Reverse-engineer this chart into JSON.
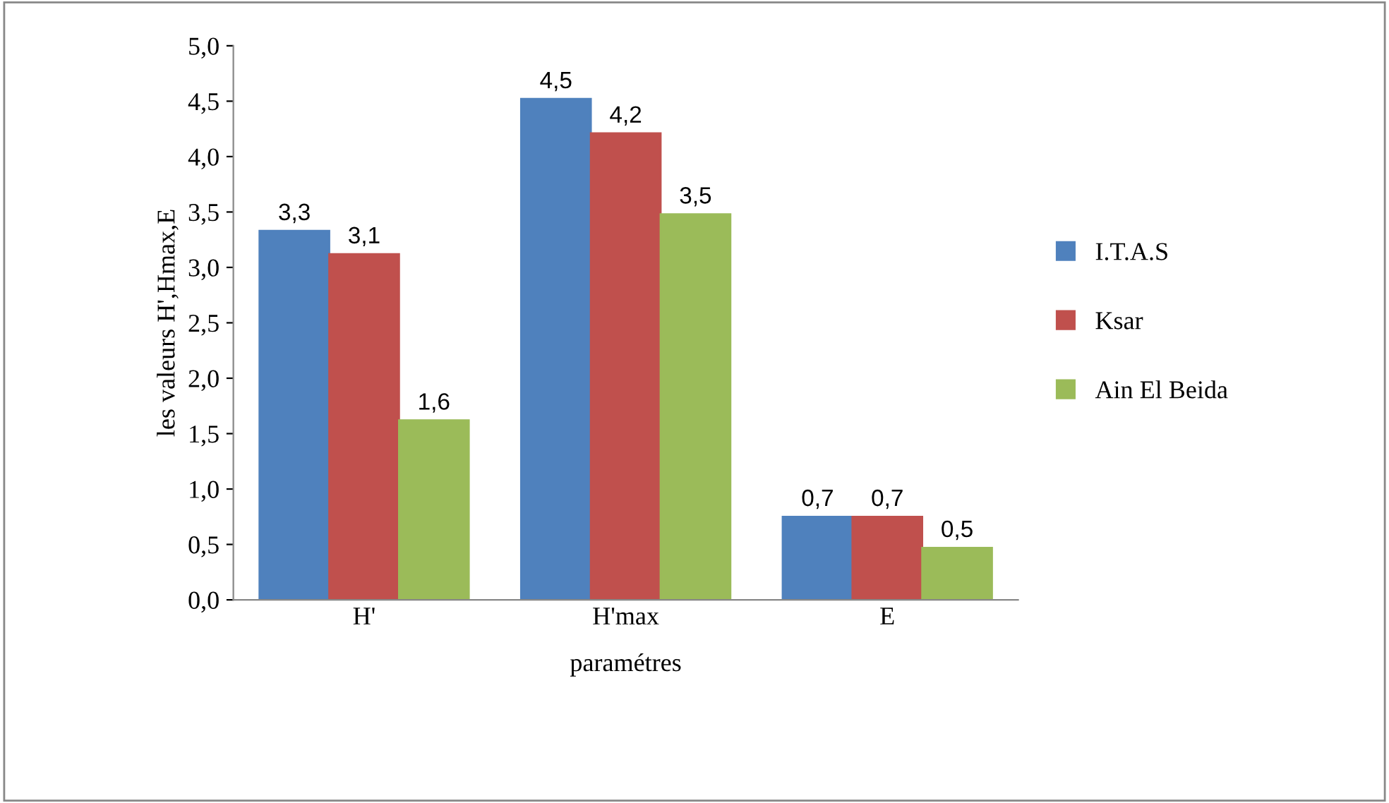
{
  "chart_data": {
    "type": "bar",
    "xlabel": "paramétres",
    "ylabel": "les valeurs H',Hmax,E",
    "categories": [
      "H'",
      "H'max",
      "E"
    ],
    "series": [
      {
        "name": "I.T.A.S",
        "color": "#4f81bd",
        "values": [
          3.33,
          4.52,
          0.75
        ],
        "value_labels": [
          "3,3",
          "4,5",
          "0,7"
        ]
      },
      {
        "name": "Ksar",
        "color": "#c0504d",
        "values": [
          3.12,
          4.21,
          0.75
        ],
        "value_labels": [
          "3,1",
          "4,2",
          "0,7"
        ]
      },
      {
        "name": "Ain El Beida",
        "color": "#9bbb59",
        "values": [
          1.62,
          3.48,
          0.47
        ],
        "value_labels": [
          "1,6",
          "3,5",
          "0,5"
        ]
      }
    ],
    "ylim": [
      0,
      5
    ],
    "yticks": [
      {
        "value": 0,
        "label": "0,0"
      },
      {
        "value": 0.5,
        "label": "0,5"
      },
      {
        "value": 1,
        "label": "1,0"
      },
      {
        "value": 1.5,
        "label": "1,5"
      },
      {
        "value": 2,
        "label": "2,0"
      },
      {
        "value": 2.5,
        "label": "2,5"
      },
      {
        "value": 3,
        "label": "3,0"
      },
      {
        "value": 3.5,
        "label": "3,5"
      },
      {
        "value": 4,
        "label": "4,0"
      },
      {
        "value": 4.5,
        "label": "4,5"
      },
      {
        "value": 5,
        "label": "5,0"
      }
    ],
    "grid": false,
    "legend": "right"
  }
}
